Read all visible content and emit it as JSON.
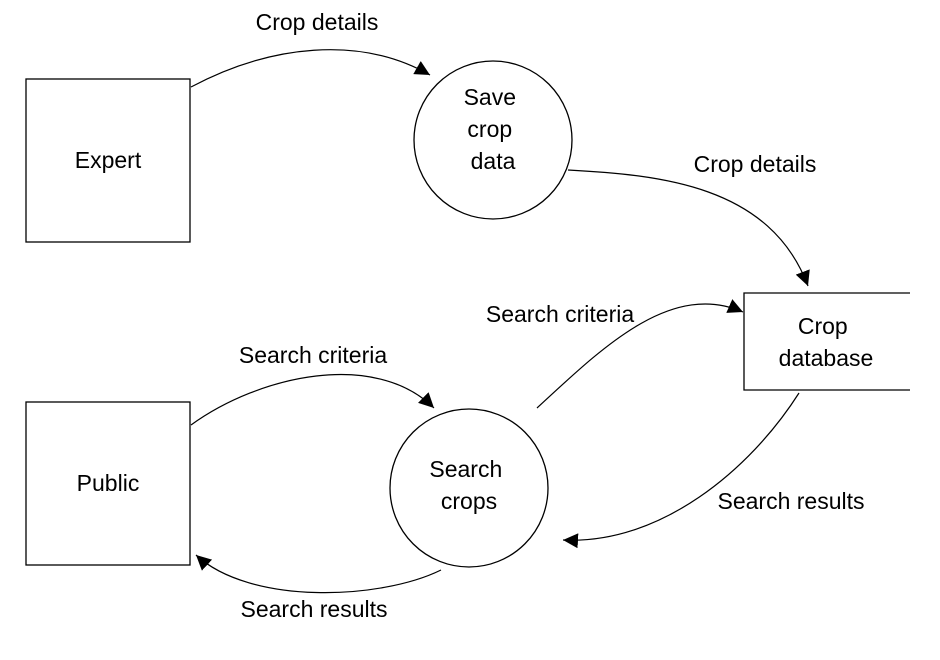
{
  "entities": {
    "expert": {
      "label": "Expert"
    },
    "public": {
      "label": "Public"
    }
  },
  "processes": {
    "save_crop_data": {
      "lines": [
        "Save",
        "crop",
        "data"
      ]
    },
    "search_crops": {
      "lines": [
        "Search",
        "crops"
      ]
    }
  },
  "data_store": {
    "lines": [
      "Crop",
      "database"
    ]
  },
  "flows": {
    "expert_to_save": "Crop details",
    "save_to_database": "Crop details",
    "public_to_search": "Search criteria",
    "search_to_database": "Search criteria",
    "database_to_search": "Search results",
    "search_to_public": "Search results"
  },
  "colors": {
    "stroke": "#000000",
    "background": "#ffffff"
  }
}
